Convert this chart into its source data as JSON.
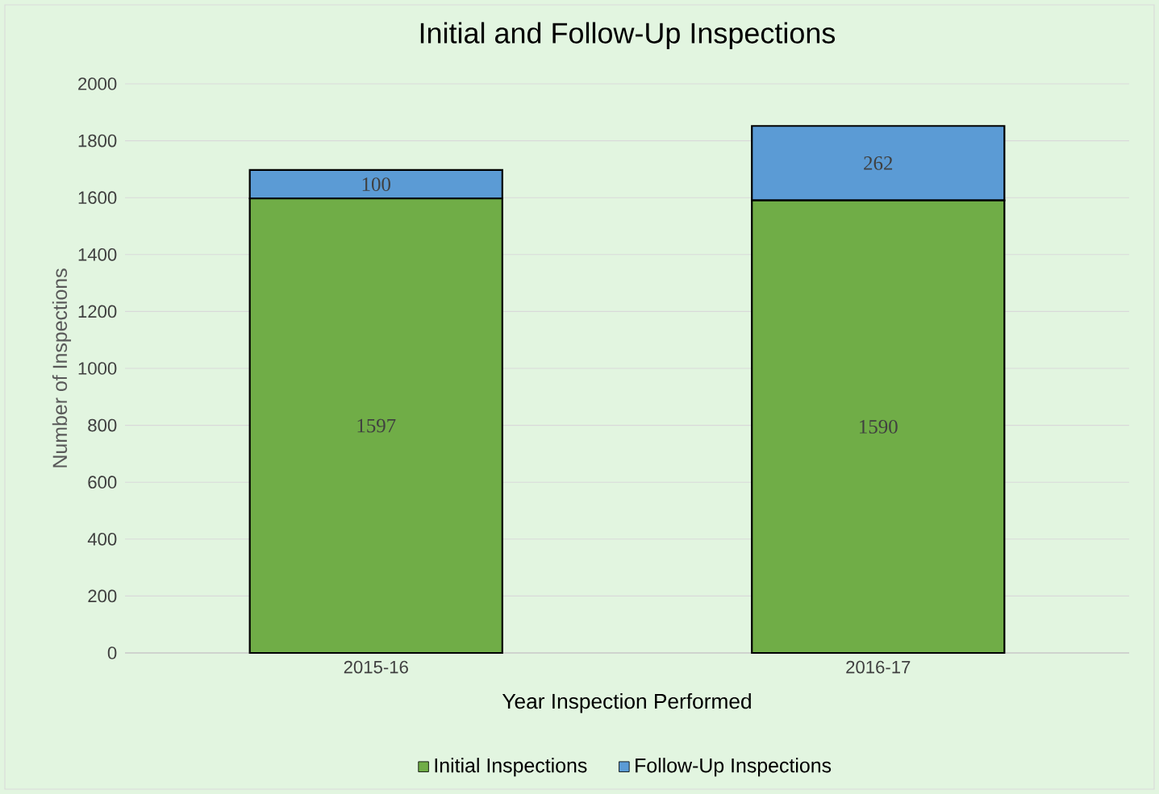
{
  "chart_data": {
    "type": "bar",
    "stacked": true,
    "title": "Initial and Follow-Up Inspections",
    "xlabel": "Year Inspection  Performed",
    "ylabel": "Number of Inspections",
    "categories": [
      "2015-16",
      "2016-17"
    ],
    "series": [
      {
        "name": "Initial Inspections",
        "color": "#70ad47",
        "values": [
          1597,
          1590
        ]
      },
      {
        "name": "Follow-Up Inspections",
        "color": "#5b9bd5",
        "values": [
          100,
          262
        ]
      }
    ],
    "ylim": [
      0,
      2000
    ],
    "yticks": [
      0,
      200,
      400,
      600,
      800,
      1000,
      1200,
      1400,
      1600,
      1800,
      2000
    ],
    "grid": "y",
    "legend": "bottom",
    "data_labels": true
  }
}
